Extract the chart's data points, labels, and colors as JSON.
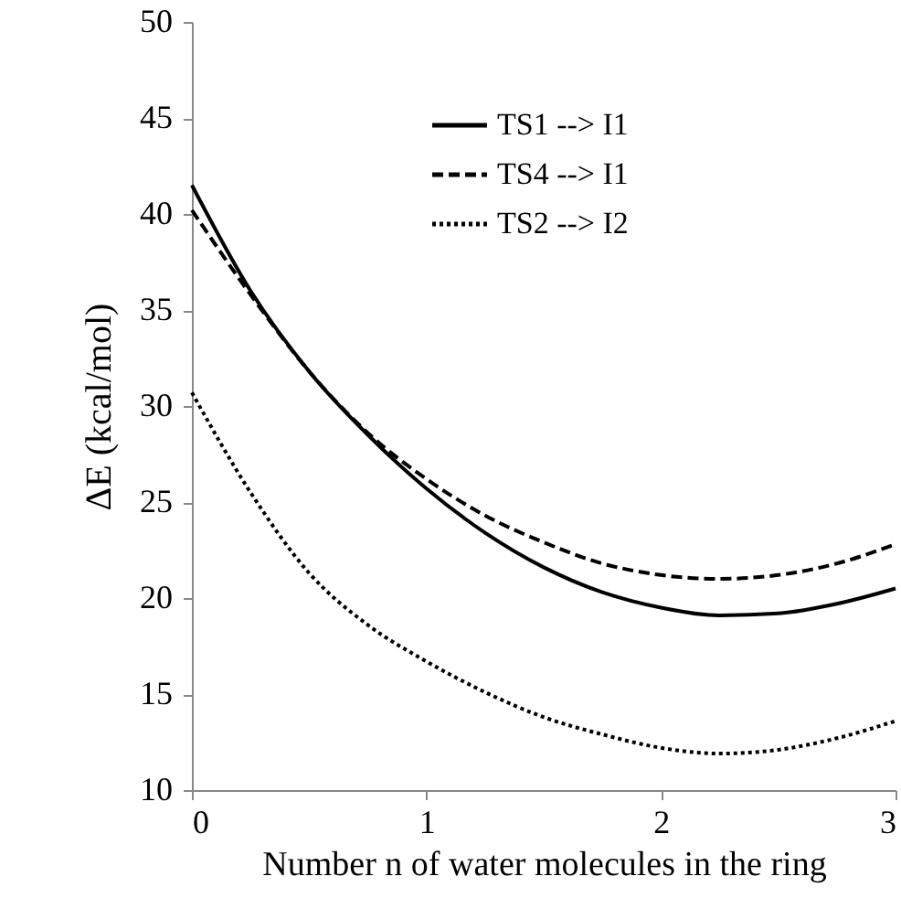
{
  "chart_data": {
    "type": "line",
    "xlabel": "Number n of water molecules in the ring",
    "ylabel": "ΔE (kcal/mol)",
    "x": [
      0,
      0.25,
      0.5,
      0.75,
      1,
      1.25,
      1.5,
      1.75,
      2,
      2.25,
      2.5,
      2.75,
      3
    ],
    "series": [
      {
        "name": "TS1 --> I1",
        "color": "#000000",
        "line_style": "solid",
        "values": [
          41.5,
          36,
          31.8,
          28.5,
          25.7,
          23.4,
          21.6,
          20.3,
          19.5,
          19.1,
          19.2,
          19.7,
          20.5
        ]
      },
      {
        "name": "TS4 --> I1",
        "color": "#000000",
        "line_style": "dashed",
        "values": [
          40.2,
          35.8,
          31.8,
          28.6,
          26.2,
          24.3,
          22.9,
          21.8,
          21.2,
          21,
          21.2,
          21.8,
          22.8
        ]
      },
      {
        "name": "TS2 --> I2",
        "color": "#000000",
        "line_style": "dotted",
        "values": [
          30.7,
          25.5,
          21.3,
          18.6,
          16.7,
          15.1,
          13.8,
          12.9,
          12.2,
          11.9,
          12.1,
          12.7,
          13.6
        ]
      }
    ],
    "xlim": [
      0,
      3
    ],
    "xticks": [
      0,
      1,
      2,
      3
    ],
    "ylim": [
      10,
      50
    ],
    "yticks": [
      10,
      15,
      20,
      25,
      30,
      35,
      40,
      45,
      50
    ],
    "grid": false,
    "legend": "top right",
    "marker": "none"
  }
}
